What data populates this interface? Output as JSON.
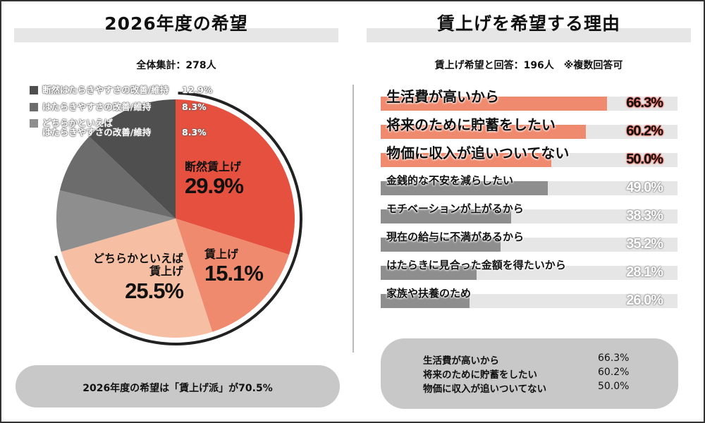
{
  "left": {
    "title": "2026年度の希望",
    "subtitle": "全体集計：278人",
    "summary": "2026年度の希望は「賃上げ派」が70.5%"
  },
  "right": {
    "title": "賃上げを希望する理由",
    "subtitle": "賃上げ希望と回答：196人　※複数回答可"
  },
  "colors": {
    "red": "#e5503f",
    "salmon": "#ef8a6e",
    "peach": "#f6bfa3",
    "grey_light": "#8e8e8e",
    "grey_mid": "#6c6c6c",
    "grey_dark": "#4f4f4f",
    "bar_highlight": "#ef8a6e",
    "bar_grey": "#8e8e8e",
    "track": "#e6e6e6"
  },
  "chart_data": [
    {
      "type": "pie",
      "start": "12 o'clock",
      "direction": "clockwise",
      "slices": [
        {
          "label": "断然賃上げ",
          "value": 29.9,
          "display": "29.9%",
          "color": "#e5503f"
        },
        {
          "label": "賃上げ",
          "value": 15.1,
          "display": "15.1%",
          "color": "#ef8a6e"
        },
        {
          "label_line1": "どちらかといえば",
          "label_line2": "賃上げ",
          "value": 25.5,
          "display": "25.5%",
          "color": "#f6bfa3"
        },
        {
          "label_line1": "どちらかといえば",
          "label_line2": "はたらきやすさの改善/維持",
          "value": 8.3,
          "display": "8.3%",
          "color": "#8e8e8e"
        },
        {
          "label": "はたらきやすさの改善/維持",
          "value": 8.3,
          "display": "8.3%",
          "color": "#6c6c6c"
        },
        {
          "label": "断然はたらきやすさの改善/維持",
          "value": 12.9,
          "display": "12.9%",
          "color": "#4f4f4f"
        }
      ]
    },
    {
      "type": "bar",
      "orientation": "horizontal",
      "xlim": [
        0,
        100
      ],
      "categories": [
        "生活費が高いから",
        "将来のために貯蓄をしたい",
        "物価に収入が追いついてない",
        "金銭的な不安を減らしたい",
        "モチベーションが上がるから",
        "現在の給与に不満があるから",
        "はたらきに見合った金額を得たいから",
        "家族や扶養のため"
      ],
      "values": [
        66.3,
        60.2,
        50.0,
        49.0,
        38.3,
        35.2,
        28.1,
        26.0
      ],
      "labels": [
        "66.3%",
        "60.2%",
        "50.0%",
        "49.0%",
        "38.3%",
        "35.2%",
        "28.1%",
        "26.0%"
      ],
      "highlighted": [
        true,
        true,
        true,
        false,
        false,
        false,
        false,
        false
      ]
    }
  ],
  "top3": [
    {
      "label": "生活費が高いから",
      "value": "66.3%"
    },
    {
      "label": "将来のために貯蓄をしたい",
      "value": "60.2%"
    },
    {
      "label": "物価に収入が追いついてない",
      "value": "50.0%"
    }
  ]
}
